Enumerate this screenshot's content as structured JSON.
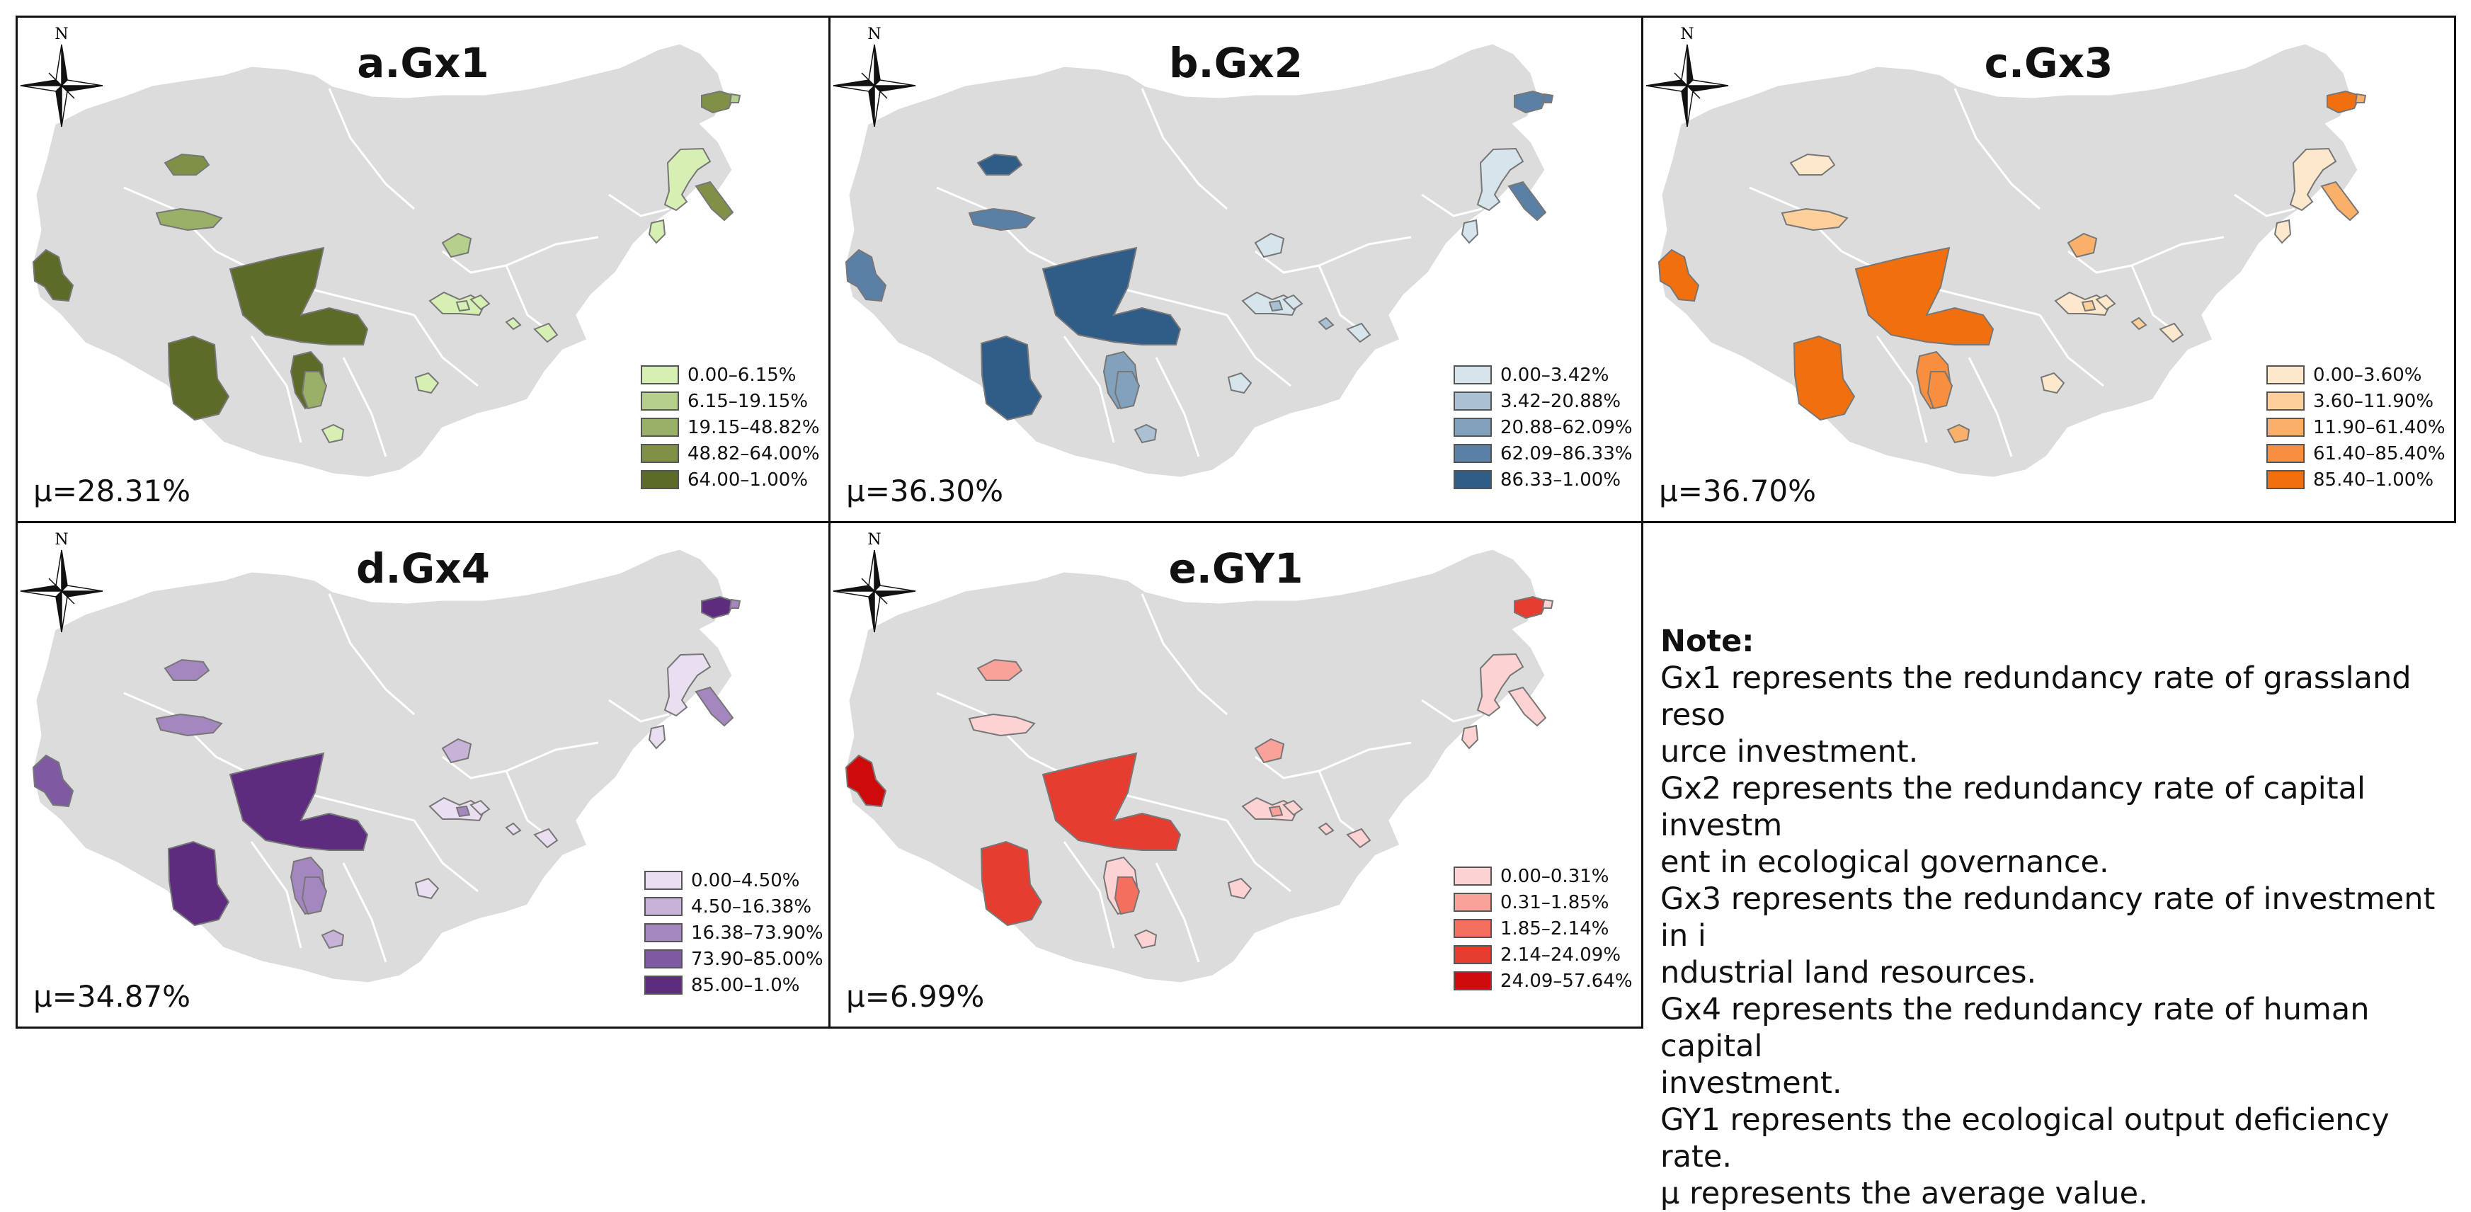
{
  "panels": [
    {
      "id": "a",
      "title": "a.Gx1",
      "mu": "μ=28.31%",
      "legend": [
        "0.00–6.15%",
        "6.15–19.15%",
        "19.15–48.82%",
        "48.82–64.00%",
        "64.00–1.00%"
      ],
      "colors": [
        "#d6efb3",
        "#b5d08c",
        "#9bb067",
        "#7f9146",
        "#5d6b28"
      ],
      "classes": [
        4,
        3,
        2,
        1,
        3,
        0,
        0,
        0,
        0,
        0,
        3,
        4,
        4,
        4,
        0,
        2,
        0,
        0,
        0,
        1
      ]
    },
    {
      "id": "b",
      "title": "b.Gx2",
      "mu": "μ=36.30%",
      "legend": [
        "0.00–3.42%",
        "3.42–20.88%",
        "20.88–62.09%",
        "62.09–86.33%",
        "86.33–1.00%"
      ],
      "colors": [
        "#d6e4ec",
        "#a9c1d3",
        "#81a1bd",
        "#5b80a5",
        "#2f5d88"
      ],
      "classes": [
        3,
        4,
        3,
        0,
        3,
        0,
        0,
        0,
        0,
        0,
        3,
        4,
        4,
        2,
        1,
        2,
        1,
        0,
        1,
        3
      ]
    },
    {
      "id": "c",
      "title": "c.Gx3",
      "mu": "μ=36.70%",
      "legend": [
        "0.00–3.60%",
        "3.60–11.90%",
        "11.90–61.40%",
        "61.40–85.40%",
        "85.40–1.00%"
      ],
      "colors": [
        "#fde8cc",
        "#fdcf9a",
        "#fbb06a",
        "#f78f3f",
        "#f07010"
      ],
      "classes": [
        4,
        0,
        1,
        2,
        4,
        0,
        0,
        0,
        0,
        0,
        2,
        4,
        4,
        3,
        2,
        3,
        1,
        0,
        1,
        2
      ]
    },
    {
      "id": "d",
      "title": "d.Gx4",
      "mu": "μ=34.87%",
      "legend": [
        "0.00–4.50%",
        "4.50–16.38%",
        "16.38–73.90%",
        "73.90–85.00%",
        "85.00–1.0%"
      ],
      "colors": [
        "#e9dff0",
        "#c7b2d8",
        "#a487bf",
        "#7e5aa2",
        "#5e2c7e"
      ],
      "classes": [
        3,
        2,
        2,
        1,
        4,
        0,
        0,
        0,
        0,
        0,
        2,
        4,
        4,
        2,
        1,
        2,
        0,
        0,
        2,
        2
      ]
    },
    {
      "id": "e",
      "title": "e.GY1",
      "mu": "μ=6.99%",
      "legend": [
        "0.00–0.31%",
        "0.31–1.85%",
        "1.85–2.14%",
        "2.14–24.09%",
        "24.09–57.64%"
      ],
      "colors": [
        "#fdd2d2",
        "#f9a29a",
        "#f3705f",
        "#e53d30",
        "#cf0a0a"
      ],
      "classes": [
        4,
        1,
        0,
        1,
        3,
        0,
        0,
        0,
        0,
        0,
        0,
        3,
        3,
        0,
        0,
        2,
        0,
        0,
        1,
        0
      ]
    }
  ],
  "compass": {
    "n_label": "N"
  },
  "note": {
    "heading": "Note:",
    "lines": [
      "Gx1 represents the redundancy rate of grassland reso",
      "urce investment.",
      "Gx2 represents the redundancy rate of capital investm",
      "ent in ecological governance.",
      "Gx3 represents the redundancy rate of investment in i",
      "ndustrial land resources.",
      "Gx4 represents the redundancy rate of human capital",
      "investment.",
      "GY1 represents the ecological output deficiency rate.",
      "μ represents the average value."
    ]
  },
  "colors": {
    "base_region": "#dcdcdc",
    "region_edge": "#ffffff",
    "border": "#111111"
  }
}
